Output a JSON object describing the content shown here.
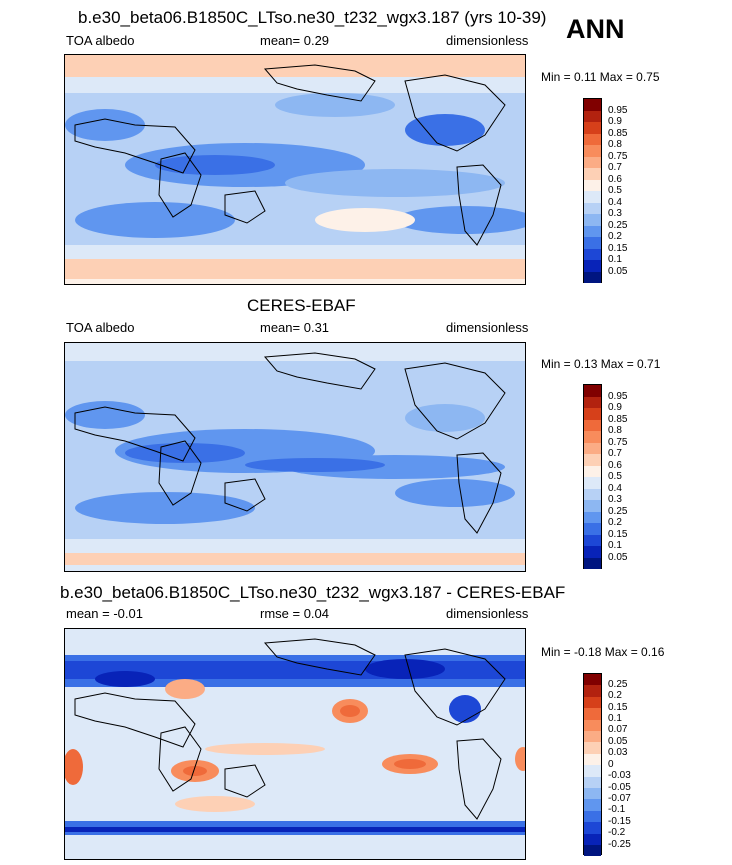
{
  "season": "ANN",
  "panels": [
    {
      "title": "b.e30_beta06.B1850C_LTso.ne30_t232_wgx3.187 (yrs 10-39)",
      "left_label": "TOA albedo",
      "center_label": "mean=  0.29",
      "right_label": "dimensionless",
      "minmax": "Min =   0.11 Max =   0.75",
      "colorbar": {
        "labels": [
          "0.95",
          "0.9",
          "0.85",
          "0.8",
          "0.75",
          "0.7",
          "0.6",
          "0.5",
          "0.4",
          "0.3",
          "0.25",
          "0.2",
          "0.15",
          "0.1",
          "0.05"
        ],
        "colors": [
          "#800000",
          "#b2220f",
          "#d6401a",
          "#ef6a3a",
          "#f88c5c",
          "#fbac85",
          "#fdd0b5",
          "#fdf1e8",
          "#dde9f8",
          "#b7d1f5",
          "#8db7f2",
          "#6096ef",
          "#3a70e6",
          "#1d47d6",
          "#0823b8",
          "#001580"
        ]
      }
    },
    {
      "title": "CERES-EBAF",
      "left_label": "TOA albedo",
      "center_label": "mean=  0.31",
      "right_label": "dimensionless",
      "minmax": "Min =   0.13 Max =   0.71",
      "colorbar": {
        "labels": [
          "0.95",
          "0.9",
          "0.85",
          "0.8",
          "0.75",
          "0.7",
          "0.6",
          "0.5",
          "0.4",
          "0.3",
          "0.25",
          "0.2",
          "0.15",
          "0.1",
          "0.05"
        ],
        "colors": [
          "#800000",
          "#b2220f",
          "#d6401a",
          "#ef6a3a",
          "#f88c5c",
          "#fbac85",
          "#fdd0b5",
          "#fdf1e8",
          "#dde9f8",
          "#b7d1f5",
          "#8db7f2",
          "#6096ef",
          "#3a70e6",
          "#1d47d6",
          "#0823b8",
          "#001580"
        ]
      }
    },
    {
      "title": "b.e30_beta06.B1850C_LTso.ne30_t232_wgx3.187 - CERES-EBAF",
      "left_label": "mean =  -0.01",
      "center_label": "rmse =  0.04",
      "right_label": "dimensionless",
      "minmax": "Min =  -0.18 Max =   0.16",
      "colorbar": {
        "labels": [
          "0.25",
          "0.2",
          "0.15",
          "0.1",
          "0.07",
          "0.05",
          "0.03",
          "0",
          "-0.03",
          "-0.05",
          "-0.07",
          "-0.1",
          "-0.15",
          "-0.2",
          "-0.25"
        ],
        "colors": [
          "#800000",
          "#b2220f",
          "#d6401a",
          "#ef6a3a",
          "#f88c5c",
          "#fbac85",
          "#fdd0b5",
          "#fdf1e8",
          "#dde9f8",
          "#b7d1f5",
          "#8db7f2",
          "#6096ef",
          "#3a70e6",
          "#1d47d6",
          "#0823b8",
          "#001580"
        ]
      }
    }
  ]
}
